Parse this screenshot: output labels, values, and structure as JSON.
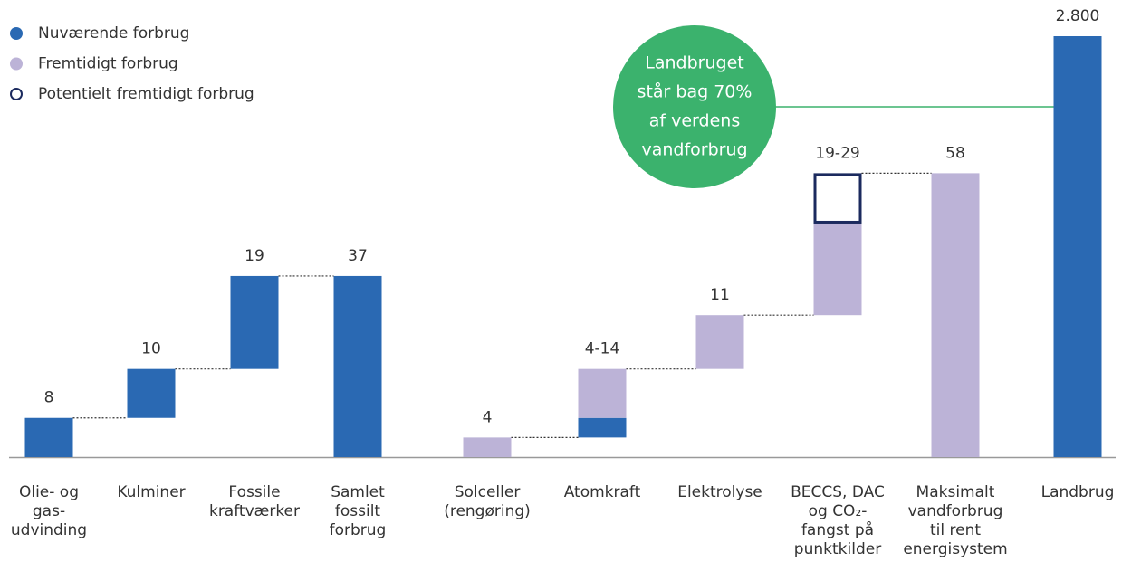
{
  "chart_data": {
    "type": "waterfall",
    "categories": [
      [
        "Olie- og",
        "gas-",
        "udvinding"
      ],
      [
        "Kulminer"
      ],
      [
        "Fossile",
        "kraftværker"
      ],
      [
        "Samlet",
        "fossilt",
        "forbrug"
      ],
      [
        "Solceller",
        "(rengøring)"
      ],
      [
        "Atomkraft"
      ],
      [
        "Elektrolyse"
      ],
      [
        "BECCS, DAC",
        "og CO₂-",
        "fangst på",
        "punktkilder"
      ],
      [
        "Maksimalt",
        "vandforbrug",
        "til rent",
        "energisystem"
      ],
      [
        "Landbrug"
      ]
    ],
    "series": [
      {
        "name": "Nuværende forbrug",
        "color": "#2a69b3",
        "values": [
          8,
          10,
          19,
          37,
          null,
          4,
          null,
          null,
          null,
          2800
        ]
      },
      {
        "name": "Fremtidigt forbrug",
        "color": "#bcb3d7",
        "values": [
          null,
          null,
          null,
          null,
          4,
          10,
          11,
          19,
          58,
          null
        ]
      },
      {
        "name": "Potentielt fremtidigt forbrug",
        "color": "#1b2a5e",
        "outline": true,
        "values": [
          null,
          null,
          null,
          null,
          null,
          null,
          null,
          10,
          null,
          null
        ]
      }
    ],
    "totals": [
      false,
      false,
      false,
      true,
      false,
      false,
      false,
      false,
      true,
      true
    ],
    "value_labels": [
      "8",
      "10",
      "19",
      "37",
      "4",
      "4-14",
      "11",
      "19-29",
      "58",
      "2.800"
    ],
    "ylim": [
      0,
      86
    ],
    "annotation": {
      "lines": [
        "Landbruget",
        "står bag 70%",
        "af verdens",
        "vandforbrug"
      ],
      "color": "#3bb26d"
    },
    "legend": "top-left"
  }
}
